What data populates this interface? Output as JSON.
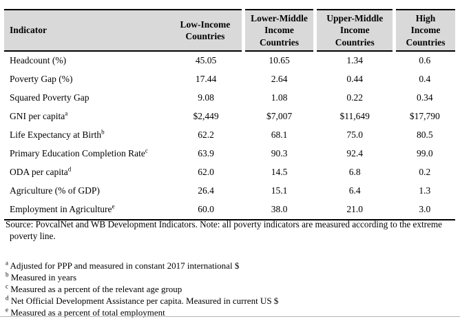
{
  "colors": {
    "header_bg": "#d9d9d9",
    "table_rule": "#000000",
    "bottom_rule": "#b3b3b3"
  },
  "table": {
    "header": {
      "indicator": "Indicator",
      "col1": "Low-Income\nCountries",
      "col2": "Lower-Middle\nIncome\nCountries",
      "col3": "Upper-Middle\nIncome\nCountries",
      "col4": "High\nIncome\nCountries"
    },
    "rows": [
      {
        "indicator": "Headcount (%)",
        "sup": "",
        "values": [
          "45.05",
          "10.65",
          "1.34",
          "0.6"
        ]
      },
      {
        "indicator": "Poverty Gap (%)",
        "sup": "",
        "values": [
          "17.44",
          "2.64",
          "0.44",
          "0.4"
        ]
      },
      {
        "indicator": "Squared Poverty Gap",
        "sup": "",
        "values": [
          "9.08",
          "1.08",
          "0.22",
          "0.34"
        ]
      },
      {
        "indicator": "GNI per capita",
        "sup": "a",
        "values": [
          "$2,449",
          "$7,007",
          "$11,649",
          "$17,790"
        ]
      },
      {
        "indicator": "Life Expectancy at Birth",
        "sup": "b",
        "values": [
          "62.2",
          "68.1",
          "75.0",
          "80.5"
        ]
      },
      {
        "indicator": "Primary Education Completion Rate",
        "sup": "c",
        "values": [
          "63.9",
          "90.3",
          "92.4",
          "99.0"
        ]
      },
      {
        "indicator": "ODA per capita",
        "sup": "d",
        "values": [
          "62.0",
          "14.5",
          "6.8",
          "0.2"
        ]
      },
      {
        "indicator": "Agriculture (% of GDP)",
        "sup": "",
        "values": [
          "26.4",
          "15.1",
          "6.4",
          "1.3"
        ]
      },
      {
        "indicator": "Employment in Agriculture",
        "sup": "e",
        "values": [
          "60.0",
          "38.0",
          "21.0",
          "3.0"
        ]
      }
    ]
  },
  "source_note": "Source: PovcalNet and WB Development Indicators. Note: all poverty indicators are measured according to the extreme poverty line.",
  "footnotes": [
    {
      "marker": "a",
      "text": "Adjusted for PPP and measured in constant 2017 international $"
    },
    {
      "marker": "b",
      "text": "Measured in years"
    },
    {
      "marker": "c",
      "text": "Measured as a percent of the relevant age group"
    },
    {
      "marker": "d",
      "text": "Net Official Development Assistance per capita. Measured in current US $"
    },
    {
      "marker": "e",
      "text": "Measured as a percent of total employment"
    }
  ]
}
